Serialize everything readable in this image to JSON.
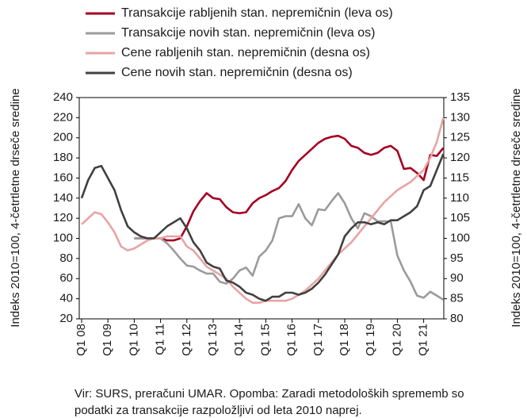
{
  "chart_data": {
    "type": "line",
    "categories": [
      "Q1 08",
      null,
      null,
      null,
      "Q1 09",
      null,
      null,
      null,
      "Q1 10",
      null,
      null,
      null,
      "Q1 11",
      null,
      null,
      null,
      "Q1 12",
      null,
      null,
      null,
      "Q1 13",
      null,
      null,
      null,
      "Q1 14",
      null,
      null,
      null,
      "Q1 15",
      null,
      null,
      null,
      "Q1 16",
      null,
      null,
      null,
      "Q1 17",
      null,
      null,
      null,
      "Q1 18",
      null,
      null,
      null,
      "Q1 19",
      null,
      null,
      null,
      "Q1 20",
      null,
      null,
      null,
      "Q1 21",
      null,
      null,
      null
    ],
    "series": [
      {
        "name": "Transakcije rabljenih stan. nepremičnin (leva os)",
        "color": "#a50021",
        "axis": "y",
        "values": [
          null,
          null,
          null,
          null,
          null,
          null,
          null,
          null,
          100,
          100,
          100,
          100,
          100,
          98,
          98,
          100,
          112,
          127,
          137,
          145,
          140,
          139,
          131,
          126,
          125,
          126,
          135,
          140,
          143,
          147,
          150,
          157,
          168,
          177,
          183,
          189,
          195,
          199,
          201,
          202,
          199,
          192,
          190,
          185,
          183,
          185,
          190,
          192,
          187,
          169,
          170,
          165,
          158,
          183,
          182,
          190
        ]
      },
      {
        "name": "Transakcije novih stan. nepremičnin (leva os)",
        "color": "#9b9b9b",
        "axis": "y",
        "values": [
          null,
          null,
          null,
          null,
          null,
          null,
          null,
          null,
          100,
          100,
          100,
          100,
          100,
          95,
          88,
          80,
          73,
          72,
          68,
          65,
          65,
          57,
          55,
          60,
          68,
          71,
          63,
          82,
          88,
          98,
          120,
          122,
          122,
          134,
          120,
          113,
          129,
          128,
          137,
          145,
          135,
          120,
          110,
          125,
          122,
          117,
          117,
          117,
          83,
          68,
          57,
          43,
          41,
          47,
          43,
          39
        ]
      },
      {
        "name": "Cene rabljenih stan. nepremičnin (desna os)",
        "color": "#e8a3a3",
        "axis": "y2",
        "values": [
          103.5,
          105,
          106.5,
          106,
          104,
          101.5,
          98,
          97,
          97.5,
          98.5,
          99.5,
          100,
          100,
          100.5,
          100.5,
          100.5,
          98,
          97,
          95,
          93,
          92,
          91,
          90,
          88,
          86.5,
          85,
          84,
          84,
          84.5,
          84.5,
          84.5,
          84.5,
          85,
          86,
          87,
          88.5,
          90,
          92,
          94,
          96,
          97.5,
          99,
          101,
          103,
          105,
          107,
          109,
          110.5,
          112,
          113,
          114,
          115.5,
          117,
          120,
          124,
          130
        ]
      },
      {
        "name": "Cene novih stan. nepremičnin (desna os)",
        "color": "#404040",
        "axis": "y2",
        "values": [
          110,
          114.5,
          117.5,
          118,
          115,
          112,
          107,
          103,
          101.5,
          100.5,
          100,
          100,
          101.5,
          103,
          104,
          105,
          102.5,
          99,
          97,
          94,
          93,
          92.5,
          89.5,
          89,
          88,
          86.5,
          86,
          85,
          84.5,
          85.5,
          85.5,
          86.5,
          86.5,
          86,
          86.5,
          87.5,
          89,
          91,
          93.5,
          96,
          100.5,
          102.5,
          104,
          104,
          103.5,
          104,
          103.5,
          104.5,
          104.5,
          105.5,
          106.5,
          108,
          112,
          113,
          117,
          121
        ]
      }
    ],
    "ylim": [
      20,
      240
    ],
    "yticks": [
      20,
      40,
      60,
      80,
      100,
      120,
      140,
      160,
      180,
      200,
      220,
      240
    ],
    "y2lim": [
      80,
      135
    ],
    "y2ticks": [
      80,
      85,
      90,
      95,
      100,
      105,
      110,
      115,
      120,
      125,
      130,
      135
    ],
    "y_label": "Indeks 2010=100, 4-četrtletne drseče sredine",
    "y2_label": "Indeks 2010=100, 4-četrtletne drseče sredine",
    "notes": [
      "Vir: SURS, preračuni UMAR. Opomba: Zaradi metodoloških sprememb so",
      "podatki za transakcije razpoložljivi od leta 2010 naprej."
    ]
  }
}
